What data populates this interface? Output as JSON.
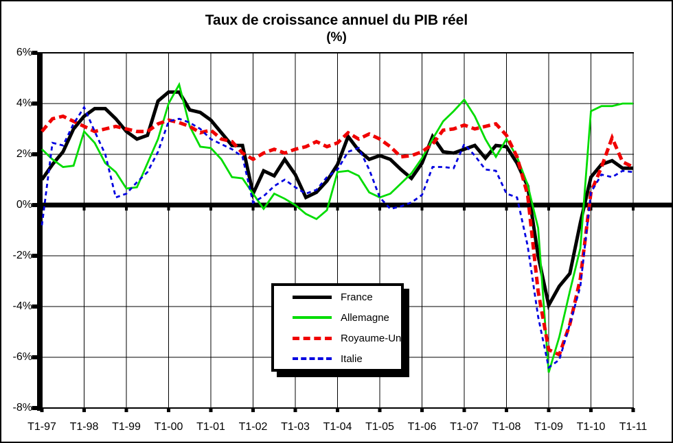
{
  "title": {
    "line1": "Taux de croissance annuel du PIB réel",
    "line2": "(%)"
  },
  "chart_data": {
    "type": "line",
    "title": "Taux de croissance annuel du PIB réel",
    "unit": "(%)",
    "x_tick_labels": [
      "T1-97",
      "T1-98",
      "T1-99",
      "T1-00",
      "T1-01",
      "T1-02",
      "T1-03",
      "T1-04",
      "T1-05",
      "T1-06",
      "T1-07",
      "T1-08",
      "T1-09",
      "T1-10",
      "T1-11"
    ],
    "y_tick_labels": [
      "6%",
      "4%",
      "2%",
      "0%",
      "-2%",
      "-4%",
      "-6%",
      "-8%"
    ],
    "y_tick_values": [
      6,
      4,
      2,
      0,
      -2,
      -4,
      -6,
      -8
    ],
    "ylim": [
      -8,
      6
    ],
    "points_per_year": 4,
    "grid": "on",
    "legend_position": "inside-bottom-center",
    "series": [
      {
        "name": "France",
        "color": "#000000",
        "style": "solid",
        "width": 5,
        "values": [
          1.0,
          1.6,
          2.1,
          3.0,
          3.5,
          3.8,
          3.8,
          3.4,
          2.9,
          2.6,
          2.75,
          4.1,
          4.45,
          4.45,
          3.75,
          3.65,
          3.35,
          2.85,
          2.35,
          2.35,
          0.45,
          1.35,
          1.15,
          1.8,
          1.2,
          0.3,
          0.5,
          0.95,
          1.6,
          2.7,
          2.15,
          1.8,
          1.95,
          1.8,
          1.4,
          1.05,
          1.65,
          2.7,
          2.1,
          2.05,
          2.2,
          2.35,
          1.85,
          2.35,
          2.3,
          1.65,
          0.75,
          -2.0,
          -3.95,
          -3.2,
          -2.7,
          -0.7,
          1.1,
          1.6,
          1.75,
          1.45,
          1.45
        ]
      },
      {
        "name": "Allemagne",
        "color": "#00dc00",
        "style": "solid",
        "width": 2.8,
        "values": [
          2.2,
          1.8,
          1.5,
          1.55,
          2.9,
          2.45,
          1.65,
          1.3,
          0.65,
          0.7,
          1.65,
          2.6,
          4.0,
          4.75,
          3.1,
          2.3,
          2.25,
          1.8,
          1.1,
          1.05,
          0.45,
          -0.15,
          0.45,
          0.25,
          0.0,
          -0.35,
          -0.55,
          -0.2,
          1.3,
          1.35,
          1.15,
          0.5,
          0.3,
          0.45,
          0.85,
          1.25,
          1.85,
          2.6,
          3.3,
          3.7,
          4.15,
          3.5,
          2.6,
          1.9,
          2.6,
          1.9,
          0.8,
          -0.9,
          -6.6,
          -5.2,
          -3.4,
          -1.7,
          3.7,
          3.9,
          3.9,
          4.0,
          4.0
        ]
      },
      {
        "name": "Royaume-Uni",
        "color": "#f00000",
        "style": "dashed",
        "width": 5,
        "values": [
          2.9,
          3.4,
          3.5,
          3.3,
          3.1,
          2.9,
          3.0,
          3.1,
          3.0,
          2.9,
          2.9,
          3.2,
          3.35,
          3.25,
          3.1,
          2.85,
          2.95,
          2.6,
          2.5,
          2.05,
          1.8,
          2.05,
          2.2,
          2.05,
          2.2,
          2.3,
          2.5,
          2.3,
          2.45,
          2.85,
          2.6,
          2.8,
          2.6,
          2.3,
          1.9,
          1.95,
          2.1,
          2.4,
          2.95,
          3.0,
          3.15,
          3.0,
          3.1,
          3.2,
          2.75,
          1.9,
          0.4,
          -3.4,
          -5.7,
          -5.9,
          -4.7,
          -2.9,
          0.5,
          1.5,
          2.65,
          1.7,
          1.5
        ]
      },
      {
        "name": "Italie",
        "color": "#0000e0",
        "style": "dashed",
        "width": 2.8,
        "values": [
          -0.8,
          2.45,
          2.35,
          3.2,
          3.85,
          2.9,
          2.0,
          0.3,
          0.45,
          0.9,
          1.3,
          2.1,
          3.3,
          3.4,
          3.25,
          3.0,
          2.6,
          2.4,
          2.2,
          1.9,
          0.1,
          0.35,
          0.75,
          1.0,
          0.7,
          0.45,
          0.6,
          1.1,
          1.4,
          2.1,
          2.25,
          1.4,
          0.3,
          -0.15,
          -0.05,
          0.1,
          0.4,
          1.5,
          1.5,
          1.45,
          2.4,
          1.95,
          1.4,
          1.35,
          0.45,
          0.3,
          -1.6,
          -4.4,
          -6.4,
          -6.1,
          -4.7,
          -3.2,
          0.5,
          1.2,
          1.1,
          1.35,
          1.3
        ]
      }
    ]
  }
}
